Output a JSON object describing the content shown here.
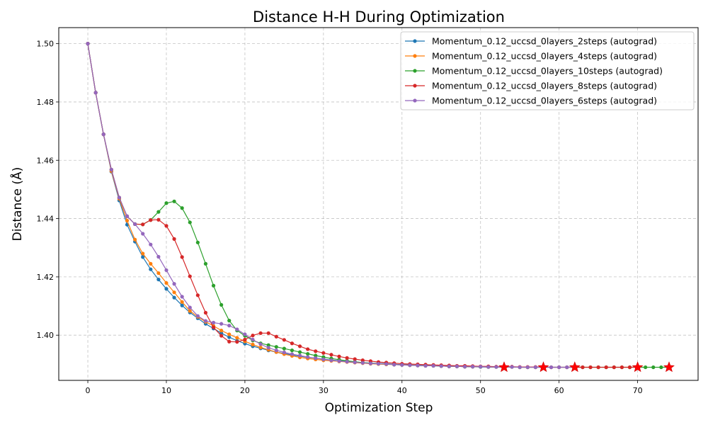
{
  "chart_data": {
    "type": "line",
    "title": "Distance H-H During Optimization",
    "xlabel": "Optimization Step",
    "ylabel": "Distance (Å)",
    "xlim": [
      -3.7,
      77.7
    ],
    "ylim": [
      1.3845,
      1.5055
    ],
    "xticks": [
      0,
      10,
      20,
      30,
      40,
      50,
      60,
      70
    ],
    "yticks": [
      1.4,
      1.42,
      1.44,
      1.46,
      1.48,
      1.5
    ],
    "grid": true,
    "legend_position": "top-right",
    "converged_marker": "red-star",
    "series": [
      {
        "name": "Momentum_0.12_uccsd_0layers_2steps (autograd)",
        "color": "#1f77b4",
        "x": [
          0,
          1,
          2,
          3,
          4,
          5,
          6,
          7,
          8,
          9,
          10,
          11,
          12,
          13,
          14,
          15,
          16,
          17,
          18,
          19,
          20,
          21,
          22,
          23,
          24,
          25,
          26,
          27,
          28,
          29,
          30,
          31,
          32,
          33,
          34,
          35,
          36,
          37,
          38,
          39,
          40,
          41,
          42,
          43,
          44,
          45,
          46,
          47,
          48,
          49,
          50,
          51,
          52,
          53
        ],
        "y": [
          1.5,
          1.4832,
          1.4689,
          1.4561,
          1.4462,
          1.4379,
          1.4321,
          1.4268,
          1.4226,
          1.4191,
          1.4159,
          1.4129,
          1.4102,
          1.4078,
          1.4058,
          1.4039,
          1.4023,
          1.4007,
          1.3993,
          1.3981,
          1.3971,
          1.3962,
          1.3955,
          1.3948,
          1.3942,
          1.3937,
          1.3932,
          1.3928,
          1.3924,
          1.3921,
          1.3918,
          1.3915,
          1.3912,
          1.391,
          1.3908,
          1.3906,
          1.3904,
          1.3903,
          1.3902,
          1.39,
          1.3899,
          1.3898,
          1.3897,
          1.3896,
          1.3895,
          1.3894,
          1.3893,
          1.3893,
          1.3892,
          1.3892,
          1.3891,
          1.3891,
          1.3891,
          1.389
        ],
        "converged_at": 53
      },
      {
        "name": "Momentum_0.12_uccsd_0layers_4steps (autograd)",
        "color": "#ff7f0e",
        "x": [
          0,
          1,
          2,
          3,
          4,
          5,
          6,
          7,
          8,
          9,
          10,
          11,
          12,
          13,
          14,
          15,
          16,
          17,
          18,
          19,
          20,
          21,
          22,
          23,
          24,
          25,
          26,
          27,
          28,
          29,
          30,
          31,
          32,
          33,
          34,
          35,
          36,
          37,
          38,
          39,
          40,
          41,
          42,
          43,
          44,
          45,
          46,
          47,
          48,
          49,
          50,
          51,
          52,
          53,
          54,
          55,
          56,
          57,
          58
        ],
        "y": [
          1.5,
          1.4832,
          1.4689,
          1.4563,
          1.4468,
          1.4393,
          1.4328,
          1.428,
          1.4245,
          1.4213,
          1.4179,
          1.4147,
          1.4114,
          1.4083,
          1.4063,
          1.4046,
          1.4032,
          1.4016,
          1.4003,
          1.3991,
          1.3979,
          1.3968,
          1.3958,
          1.395,
          1.3942,
          1.3935,
          1.3929,
          1.3924,
          1.392,
          1.3917,
          1.3914,
          1.3912,
          1.391,
          1.3908,
          1.3906,
          1.3904,
          1.3902,
          1.3901,
          1.39,
          1.3899,
          1.3898,
          1.3897,
          1.3896,
          1.3895,
          1.3895,
          1.3894,
          1.3893,
          1.3893,
          1.3892,
          1.3892,
          1.3892,
          1.3891,
          1.3891,
          1.3891,
          1.3891,
          1.389,
          1.389,
          1.389,
          1.389
        ],
        "converged_at": 58
      },
      {
        "name": "Momentum_0.12_uccsd_0layers_10steps (autograd)",
        "color": "#2ca02c",
        "x": [
          0,
          1,
          2,
          3,
          4,
          5,
          6,
          7,
          8,
          9,
          10,
          11,
          12,
          13,
          14,
          15,
          16,
          17,
          18,
          19,
          20,
          21,
          22,
          23,
          24,
          25,
          26,
          27,
          28,
          29,
          30,
          31,
          32,
          33,
          34,
          35,
          36,
          37,
          38,
          39,
          40,
          41,
          42,
          43,
          44,
          45,
          46,
          47,
          48,
          49,
          50,
          51,
          52,
          53,
          54,
          55,
          56,
          57,
          58,
          59,
          60,
          61,
          62,
          63,
          64,
          65,
          66,
          67,
          68,
          69,
          70,
          71,
          72,
          73,
          74
        ],
        "y": [
          1.5,
          1.4832,
          1.4689,
          1.4568,
          1.4472,
          1.4408,
          1.4381,
          1.438,
          1.4395,
          1.4423,
          1.4453,
          1.4459,
          1.4436,
          1.4387,
          1.4318,
          1.4245,
          1.417,
          1.4104,
          1.405,
          1.4016,
          1.3998,
          1.3982,
          1.3972,
          1.3966,
          1.396,
          1.3954,
          1.3948,
          1.3942,
          1.3936,
          1.393,
          1.3925,
          1.392,
          1.3916,
          1.3912,
          1.3909,
          1.3906,
          1.3904,
          1.3902,
          1.3901,
          1.3899,
          1.3898,
          1.3897,
          1.3896,
          1.3895,
          1.3895,
          1.3894,
          1.3893,
          1.3893,
          1.3892,
          1.3892,
          1.3892,
          1.3891,
          1.3891,
          1.3891,
          1.3891,
          1.389,
          1.389,
          1.389,
          1.389,
          1.389,
          1.389,
          1.389,
          1.389,
          1.389,
          1.389,
          1.389,
          1.389,
          1.389,
          1.389,
          1.389,
          1.389,
          1.389,
          1.389,
          1.389,
          1.389
        ],
        "converged_at": 74
      },
      {
        "name": "Momentum_0.12_uccsd_0layers_8steps (autograd)",
        "color": "#d62728",
        "x": [
          0,
          1,
          2,
          3,
          4,
          5,
          6,
          7,
          8,
          9,
          10,
          11,
          12,
          13,
          14,
          15,
          16,
          17,
          18,
          19,
          20,
          21,
          22,
          23,
          24,
          25,
          26,
          27,
          28,
          29,
          30,
          31,
          32,
          33,
          34,
          35,
          36,
          37,
          38,
          39,
          40,
          41,
          42,
          43,
          44,
          45,
          46,
          47,
          48,
          49,
          50,
          51,
          52,
          53,
          54,
          55,
          56,
          57,
          58,
          59,
          60,
          61,
          62,
          63,
          64,
          65,
          66,
          67,
          68,
          69,
          70
        ],
        "y": [
          1.5,
          1.4832,
          1.4689,
          1.4568,
          1.4472,
          1.4408,
          1.4381,
          1.438,
          1.4395,
          1.4396,
          1.4375,
          1.433,
          1.4268,
          1.4202,
          1.4137,
          1.4077,
          1.4027,
          1.3998,
          1.3978,
          1.3977,
          1.3985,
          1.3999,
          1.4007,
          1.4007,
          1.3995,
          1.3984,
          1.3972,
          1.3962,
          1.3952,
          1.3945,
          1.3939,
          1.3933,
          1.3927,
          1.3922,
          1.3918,
          1.3914,
          1.3911,
          1.3908,
          1.3906,
          1.3904,
          1.3902,
          1.3901,
          1.39,
          1.3899,
          1.3898,
          1.3897,
          1.3896,
          1.3895,
          1.3895,
          1.3894,
          1.3893,
          1.3893,
          1.3892,
          1.3892,
          1.3892,
          1.3891,
          1.3891,
          1.3891,
          1.3891,
          1.389,
          1.389,
          1.389,
          1.389,
          1.389,
          1.389,
          1.389,
          1.389,
          1.389,
          1.389,
          1.389,
          1.389
        ],
        "converged_at": 70
      },
      {
        "name": "Momentum_0.12_uccsd_0layers_6steps (autograd)",
        "color": "#9467bd",
        "x": [
          0,
          1,
          2,
          3,
          4,
          5,
          6,
          7,
          8,
          9,
          10,
          11,
          12,
          13,
          14,
          15,
          16,
          17,
          18,
          19,
          20,
          21,
          22,
          23,
          24,
          25,
          26,
          27,
          28,
          29,
          30,
          31,
          32,
          33,
          34,
          35,
          36,
          37,
          38,
          39,
          40,
          41,
          42,
          43,
          44,
          45,
          46,
          47,
          48,
          49,
          50,
          51,
          52,
          53,
          54,
          55,
          56,
          57,
          58,
          59,
          60,
          61,
          62
        ],
        "y": [
          1.5,
          1.4832,
          1.4689,
          1.4568,
          1.4472,
          1.4408,
          1.4381,
          1.4348,
          1.4311,
          1.4269,
          1.4223,
          1.4176,
          1.4132,
          1.4095,
          1.4066,
          1.4049,
          1.4043,
          1.4039,
          1.4033,
          1.402,
          1.4003,
          1.3985,
          1.3969,
          1.3957,
          1.3948,
          1.3941,
          1.3935,
          1.393,
          1.3925,
          1.3921,
          1.3917,
          1.3914,
          1.3911,
          1.3909,
          1.3907,
          1.3905,
          1.3903,
          1.3902,
          1.3901,
          1.3899,
          1.3898,
          1.3897,
          1.3896,
          1.3895,
          1.3895,
          1.3894,
          1.3893,
          1.3893,
          1.3892,
          1.3892,
          1.3892,
          1.3891,
          1.3891,
          1.3891,
          1.3891,
          1.389,
          1.389,
          1.389,
          1.389,
          1.389,
          1.389,
          1.389,
          1.389
        ],
        "converged_at": 62
      }
    ]
  }
}
